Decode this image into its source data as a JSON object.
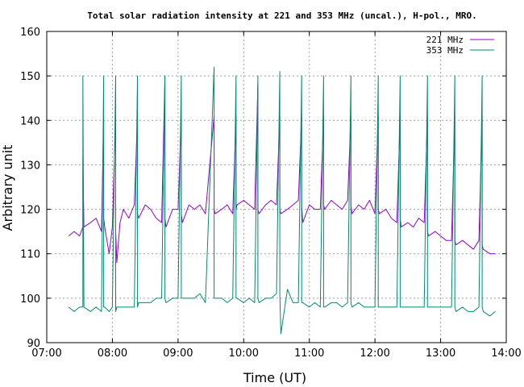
{
  "chart_data": {
    "type": "line",
    "title": "Total solar radiation intensity at 221 and 353 MHz (uncal.), H-pol., MRO.",
    "xlabel": "Time (UT)",
    "ylabel": "Arbitrary unit",
    "xlim": [
      "07:00",
      "14:00"
    ],
    "ylim": [
      90,
      160
    ],
    "x_ticks": [
      "07:00",
      "08:00",
      "09:00",
      "10:00",
      "11:00",
      "12:00",
      "13:00",
      "14:00"
    ],
    "y_ticks": [
      90,
      100,
      110,
      120,
      130,
      140,
      150,
      160
    ],
    "grid": true,
    "legend_position": "top-right",
    "series": [
      {
        "name": "221 MHz",
        "color": "#9400d3",
        "x": [
          "07:20",
          "07:25",
          "07:30",
          "07:33",
          "07:33",
          "07:34",
          "07:40",
          "07:45",
          "07:50",
          "07:52",
          "07:52",
          "07:53",
          "07:57",
          "08:00",
          "08:03",
          "08:03",
          "08:04",
          "08:07",
          "08:10",
          "08:15",
          "08:20",
          "08:23",
          "08:23",
          "08:24",
          "08:30",
          "08:35",
          "08:40",
          "08:45",
          "08:48",
          "08:48",
          "08:49",
          "08:55",
          "09:00",
          "09:03",
          "09:03",
          "09:04",
          "09:10",
          "09:15",
          "09:20",
          "09:25",
          "09:33",
          "09:33",
          "09:34",
          "09:40",
          "09:45",
          "09:50",
          "09:53",
          "09:53",
          "09:54",
          "10:00",
          "10:05",
          "10:10",
          "10:13",
          "10:13",
          "10:14",
          "10:20",
          "10:25",
          "10:30",
          "10:33",
          "10:33",
          "10:34",
          "10:40",
          "10:45",
          "10:50",
          "10:53",
          "10:53",
          "10:54",
          "11:00",
          "11:05",
          "11:10",
          "11:13",
          "11:13",
          "11:14",
          "11:20",
          "11:25",
          "11:30",
          "11:35",
          "11:38",
          "11:38",
          "11:39",
          "11:45",
          "11:50",
          "11:55",
          "12:00",
          "12:03",
          "12:03",
          "12:04",
          "12:10",
          "12:15",
          "12:20",
          "12:23",
          "12:23",
          "12:24",
          "12:30",
          "12:35",
          "12:40",
          "12:45",
          "12:48",
          "12:48",
          "12:49",
          "12:55",
          "13:00",
          "13:05",
          "13:10",
          "13:13",
          "13:13",
          "13:14",
          "13:20",
          "13:25",
          "13:30",
          "13:35",
          "13:38",
          "13:38",
          "13:39",
          "13:45",
          "13:50"
        ],
        "values": [
          114,
          115,
          114,
          116,
          132,
          116,
          117,
          118,
          115,
          141,
          118,
          116,
          110,
          116,
          141,
          115,
          108,
          117,
          120,
          118,
          121,
          141,
          119,
          118,
          121,
          120,
          118,
          117,
          150,
          118,
          116,
          120,
          120,
          141,
          119,
          117,
          121,
          120,
          121,
          119,
          141,
          120,
          119,
          120,
          121,
          119,
          141,
          120,
          121,
          122,
          121,
          120,
          148,
          120,
          119,
          121,
          122,
          121,
          141,
          120,
          119,
          120,
          121,
          122,
          141,
          121,
          117,
          121,
          120,
          120,
          141,
          121,
          120,
          122,
          121,
          120,
          122,
          141,
          121,
          119,
          121,
          120,
          122,
          119,
          141,
          120,
          119,
          120,
          118,
          117,
          141,
          118,
          116,
          117,
          116,
          118,
          117,
          141,
          115,
          114,
          115,
          114,
          113,
          113,
          141,
          113,
          112,
          113,
          112,
          111,
          113,
          141,
          112,
          111,
          110,
          110
        ]
      },
      {
        "name": "353 MHz",
        "color": "#008b6b",
        "x": [
          "07:20",
          "07:25",
          "07:30",
          "07:33",
          "07:33",
          "07:34",
          "07:40",
          "07:45",
          "07:50",
          "07:52",
          "07:52",
          "07:53",
          "07:57",
          "08:00",
          "08:03",
          "08:03",
          "08:04",
          "08:07",
          "08:10",
          "08:15",
          "08:20",
          "08:23",
          "08:23",
          "08:24",
          "08:30",
          "08:35",
          "08:40",
          "08:45",
          "08:48",
          "08:48",
          "08:49",
          "08:55",
          "09:00",
          "09:03",
          "09:03",
          "09:04",
          "09:10",
          "09:15",
          "09:20",
          "09:25",
          "09:33",
          "09:33",
          "09:34",
          "09:40",
          "09:45",
          "09:50",
          "09:53",
          "09:53",
          "09:54",
          "10:00",
          "10:05",
          "10:10",
          "10:13",
          "10:13",
          "10:14",
          "10:20",
          "10:25",
          "10:30",
          "10:33",
          "10:33",
          "10:34",
          "10:40",
          "10:45",
          "10:50",
          "10:53",
          "10:53",
          "10:54",
          "11:00",
          "11:05",
          "11:10",
          "11:13",
          "11:13",
          "11:14",
          "11:20",
          "11:25",
          "11:30",
          "11:35",
          "11:38",
          "11:38",
          "11:39",
          "11:45",
          "11:50",
          "11:55",
          "12:00",
          "12:03",
          "12:03",
          "12:04",
          "12:10",
          "12:15",
          "12:20",
          "12:23",
          "12:23",
          "12:24",
          "12:30",
          "12:35",
          "12:40",
          "12:45",
          "12:48",
          "12:48",
          "12:49",
          "12:55",
          "13:00",
          "13:05",
          "13:10",
          "13:13",
          "13:13",
          "13:14",
          "13:20",
          "13:25",
          "13:30",
          "13:35",
          "13:38",
          "13:38",
          "13:39",
          "13:45",
          "13:50"
        ],
        "values": [
          98,
          97,
          98,
          98,
          150,
          98,
          97,
          98,
          97,
          150,
          98,
          98,
          97,
          98,
          150,
          97,
          98,
          98,
          98,
          98,
          98,
          150,
          98,
          99,
          99,
          99,
          100,
          100,
          150,
          100,
          99,
          100,
          100,
          150,
          100,
          100,
          100,
          100,
          101,
          99,
          152,
          100,
          100,
          100,
          99,
          100,
          150,
          100,
          100,
          99,
          100,
          99,
          150,
          100,
          99,
          100,
          100,
          101,
          151,
          101,
          92,
          102,
          99,
          99,
          150,
          99,
          99,
          98,
          99,
          98,
          150,
          98,
          98,
          99,
          99,
          98,
          99,
          150,
          99,
          98,
          99,
          98,
          98,
          98,
          150,
          98,
          98,
          98,
          98,
          98,
          150,
          98,
          98,
          98,
          98,
          98,
          98,
          150,
          98,
          98,
          98,
          98,
          98,
          98,
          150,
          98,
          97,
          98,
          97,
          97,
          98,
          150,
          98,
          97,
          96,
          97
        ]
      }
    ]
  }
}
